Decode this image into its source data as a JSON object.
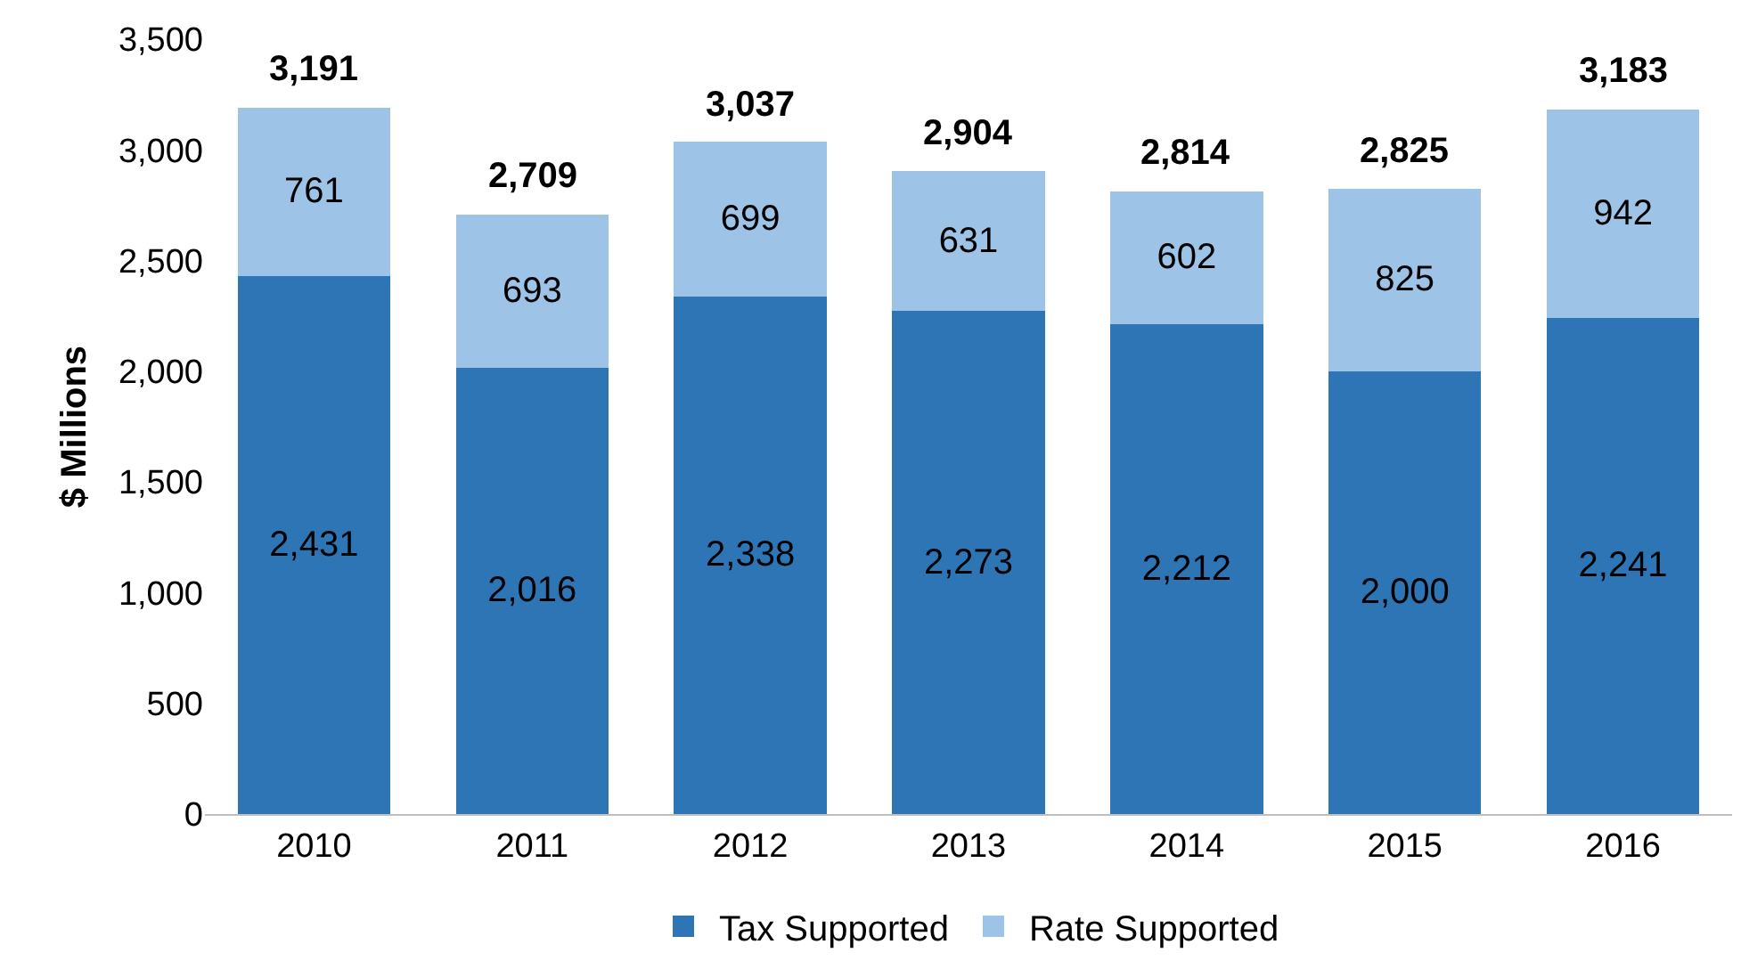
{
  "chart_data": {
    "type": "bar",
    "stacked": true,
    "ylabel": "$ Millions",
    "categories": [
      "2010",
      "2011",
      "2012",
      "2013",
      "2014",
      "2015",
      "2016"
    ],
    "series": [
      {
        "name": "Tax Supported",
        "color": "#2e75b6",
        "values": [
          2431,
          2016,
          2338,
          2273,
          2212,
          2000,
          2241
        ],
        "value_labels": [
          "2,431",
          "2,016",
          "2,338",
          "2,273",
          "2,212",
          "2,000",
          "2,241"
        ]
      },
      {
        "name": "Rate Supported",
        "color": "#9dc3e6",
        "values": [
          761,
          693,
          699,
          631,
          602,
          825,
          942
        ],
        "value_labels": [
          "761",
          "693",
          "699",
          "631",
          "602",
          "825",
          "942"
        ]
      }
    ],
    "totals": [
      "3,191",
      "2,709",
      "3,037",
      "2,904",
      "2,814",
      "2,825",
      "3,183"
    ],
    "ylim": [
      0,
      3500
    ],
    "yticks": [
      0,
      500,
      {
        "value": 1000,
        "label": "1,000"
      },
      {
        "value": 1500,
        "label": "1,500"
      },
      {
        "value": 2000,
        "label": "2,000"
      },
      {
        "value": 2500,
        "label": "2,500"
      },
      {
        "value": 3000,
        "label": "3,000"
      },
      {
        "value": 3500,
        "label": "3,500"
      }
    ],
    "grid": false,
    "legend": "bottom"
  }
}
